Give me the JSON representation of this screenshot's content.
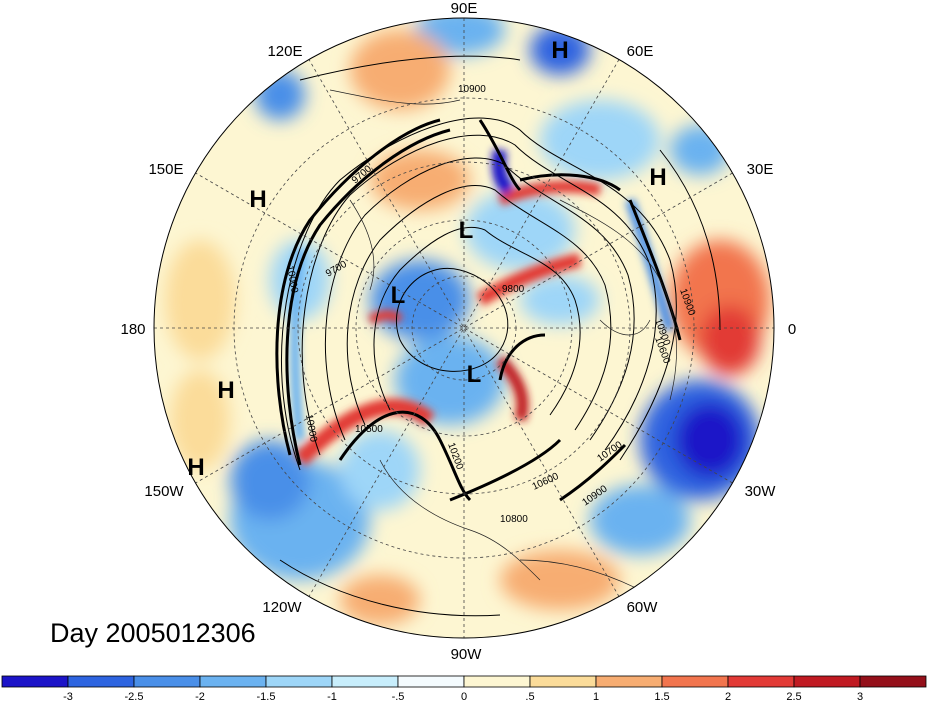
{
  "day_label": "Day 2005012306",
  "longitude_labels": [
    "90E",
    "60E",
    "30E",
    "0",
    "30W",
    "60W",
    "90W",
    "120W",
    "150W",
    "180",
    "150E",
    "120E"
  ],
  "pressure_centers": [
    "H",
    "H",
    "H",
    "H",
    "H",
    "L",
    "L",
    "L"
  ],
  "contour_labels": [
    "10900",
    "10900",
    "10900",
    "10900",
    "10800",
    "10700",
    "10600",
    "10600",
    "10500",
    "10200",
    "9700",
    "9800",
    "9700",
    "10000",
    "10000"
  ],
  "colorbar": {
    "tick_labels": [
      "-3",
      "-2.5",
      "-2",
      "-1.5",
      "-1",
      "-.5",
      "0",
      ".5",
      "1",
      "1.5",
      "2",
      "2.5",
      "3"
    ],
    "colors": [
      "#1c14c8",
      "#2d64e0",
      "#4a8fe8",
      "#6bb2f0",
      "#9ed6f8",
      "#c8eefc",
      "#f4fbfe",
      "#fdf6d2",
      "#fbdc9a",
      "#f7ad72",
      "#f2754e",
      "#e23a36",
      "#c01a22",
      "#94101a"
    ]
  }
}
